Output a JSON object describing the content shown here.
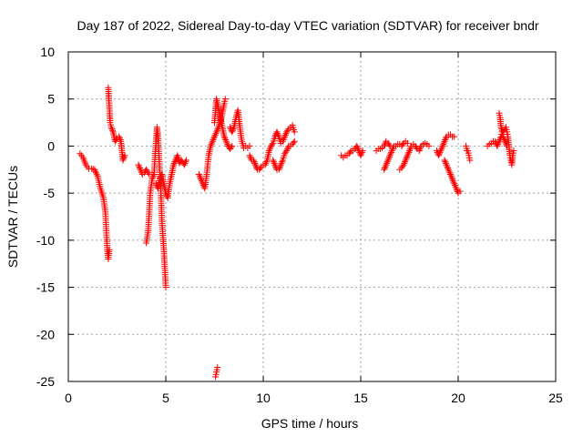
{
  "chart_data": {
    "type": "scatter",
    "title": "Day 187 of 2022, Sidereal Day-to-day VTEC variation (SDTVAR) for receiver bndr",
    "xlabel": "GPS time / hours",
    "ylabel": "SDTVAR / TECUs",
    "xlim": [
      0,
      25
    ],
    "ylim": [
      -25,
      10
    ],
    "xticks": [
      0,
      5,
      10,
      15,
      20,
      25
    ],
    "yticks": [
      -25,
      -20,
      -15,
      -10,
      -5,
      0,
      5,
      10
    ],
    "grid": true,
    "marker": "plus",
    "color": "#ff0000",
    "series": [
      {
        "name": "seg1",
        "points": [
          [
            0.6,
            -0.8
          ],
          [
            0.75,
            -1.2
          ],
          [
            0.9,
            -2.0
          ],
          [
            1.05,
            -2.4
          ],
          [
            1.2,
            -2.4
          ],
          [
            1.35,
            -2.5
          ],
          [
            1.5,
            -3.2
          ],
          [
            1.65,
            -4.5
          ],
          [
            1.8,
            -5.5
          ],
          [
            1.9,
            -7.0
          ],
          [
            1.95,
            -9.0
          ],
          [
            2.0,
            -11.0
          ],
          [
            2.05,
            -12.0
          ],
          [
            2.1,
            -11.0
          ]
        ]
      },
      {
        "name": "seg2",
        "points": [
          [
            2.05,
            6.2
          ],
          [
            2.08,
            5.0
          ],
          [
            2.12,
            3.5
          ],
          [
            2.15,
            2.5
          ],
          [
            2.2,
            2.0
          ],
          [
            2.3,
            1.5
          ],
          [
            2.4,
            0.5
          ],
          [
            2.5,
            0.8
          ],
          [
            2.6,
            1.0
          ],
          [
            2.7,
            0.5
          ],
          [
            2.75,
            -0.5
          ],
          [
            2.8,
            -1.5
          ],
          [
            2.9,
            -1.0
          ]
        ]
      },
      {
        "name": "seg3",
        "points": [
          [
            3.6,
            -2.0
          ],
          [
            3.7,
            -2.5
          ],
          [
            3.8,
            -3.0
          ],
          [
            3.9,
            -2.8
          ],
          [
            4.0,
            -2.5
          ],
          [
            4.15,
            -3.0
          ],
          [
            4.3,
            -3.0
          ]
        ]
      },
      {
        "name": "seg4",
        "points": [
          [
            4.0,
            -10.3
          ],
          [
            4.1,
            -9.0
          ],
          [
            4.15,
            -7.0
          ],
          [
            4.2,
            -5.0
          ],
          [
            4.3,
            -3.5
          ],
          [
            4.4,
            -3.0
          ],
          [
            4.45,
            -1.0
          ],
          [
            4.5,
            0.5
          ],
          [
            4.55,
            2.0
          ],
          [
            4.6,
            1.0
          ],
          [
            4.65,
            -1.0
          ],
          [
            4.7,
            -3.0
          ],
          [
            4.75,
            -5.0
          ],
          [
            4.8,
            -8.0
          ],
          [
            4.9,
            -11.0
          ],
          [
            4.95,
            -13.0
          ],
          [
            5.0,
            -15.0
          ]
        ]
      },
      {
        "name": "seg5",
        "points": [
          [
            4.5,
            -4.0
          ],
          [
            4.6,
            -4.5
          ],
          [
            4.7,
            -3.5
          ],
          [
            4.8,
            -3.0
          ],
          [
            4.9,
            -4.0
          ],
          [
            5.0,
            -5.0
          ],
          [
            5.1,
            -5.5
          ],
          [
            5.2,
            -4.0
          ],
          [
            5.3,
            -3.0
          ],
          [
            5.4,
            -2.0
          ],
          [
            5.5,
            -1.5
          ],
          [
            5.6,
            -1.0
          ],
          [
            5.7,
            -1.8
          ],
          [
            5.8,
            -1.5
          ],
          [
            5.95,
            -2.0
          ],
          [
            6.05,
            -1.5
          ]
        ]
      },
      {
        "name": "seg6",
        "points": [
          [
            6.7,
            -3.0
          ],
          [
            6.8,
            -3.5
          ],
          [
            6.9,
            -4.0
          ],
          [
            7.0,
            -4.5
          ],
          [
            7.1,
            -3.0
          ],
          [
            7.2,
            -1.0
          ],
          [
            7.3,
            0.0
          ],
          [
            7.4,
            0.5
          ],
          [
            7.5,
            1.0
          ],
          [
            7.6,
            1.5
          ],
          [
            7.7,
            2.0
          ],
          [
            7.8,
            2.5
          ],
          [
            7.9,
            3.5
          ],
          [
            8.0,
            4.5
          ],
          [
            8.05,
            5.0
          ]
        ]
      },
      {
        "name": "seg7",
        "points": [
          [
            7.5,
            2.5
          ],
          [
            7.6,
            5.0
          ],
          [
            7.7,
            4.0
          ],
          [
            7.8,
            3.0
          ],
          [
            7.9,
            2.0
          ],
          [
            8.0,
            1.0
          ],
          [
            8.1,
            0.5
          ],
          [
            8.2,
            0.0
          ],
          [
            8.3,
            -0.3
          ],
          [
            8.4,
            0.0
          ]
        ]
      },
      {
        "name": "seg8",
        "points": [
          [
            8.3,
            2.0
          ],
          [
            8.4,
            1.5
          ],
          [
            8.5,
            2.0
          ],
          [
            8.6,
            3.0
          ],
          [
            8.7,
            3.8
          ],
          [
            8.8,
            2.0
          ],
          [
            8.9,
            0.5
          ],
          [
            9.0,
            -0.2
          ],
          [
            9.1,
            0.0
          ],
          [
            9.2,
            -0.2
          ],
          [
            9.3,
            0.0
          ]
        ]
      },
      {
        "name": "seg9",
        "points": [
          [
            9.3,
            -1.0
          ],
          [
            9.4,
            -1.5
          ],
          [
            9.5,
            -1.5
          ],
          [
            9.6,
            -2.0
          ],
          [
            9.7,
            -2.5
          ],
          [
            9.8,
            -2.5
          ],
          [
            9.9,
            -2.2
          ],
          [
            10.0,
            -2.0
          ],
          [
            10.1,
            -2.0
          ],
          [
            10.2,
            -1.5
          ],
          [
            10.3,
            -0.5
          ],
          [
            10.4,
            0.0
          ],
          [
            10.5,
            0.3
          ],
          [
            10.6,
            1.0
          ],
          [
            10.7,
            1.5
          ],
          [
            10.8,
            1.0
          ],
          [
            10.9,
            0.3
          ]
        ]
      },
      {
        "name": "seg10",
        "points": [
          [
            10.5,
            -1.5
          ],
          [
            10.6,
            -2.0
          ],
          [
            10.7,
            -2.5
          ],
          [
            10.8,
            -2.5
          ],
          [
            10.9,
            -2.0
          ],
          [
            11.0,
            -1.5
          ],
          [
            11.1,
            -0.8
          ],
          [
            11.2,
            -0.5
          ],
          [
            11.3,
            0.0
          ],
          [
            11.4,
            0.0
          ],
          [
            11.5,
            0.2
          ],
          [
            11.6,
            0.5
          ]
        ]
      },
      {
        "name": "seg11",
        "points": [
          [
            11.0,
            0.5
          ],
          [
            11.1,
            1.0
          ],
          [
            11.2,
            1.5
          ],
          [
            11.3,
            1.8
          ],
          [
            11.4,
            2.0
          ],
          [
            11.5,
            2.2
          ],
          [
            11.6,
            1.5
          ]
        ]
      },
      {
        "name": "seg12",
        "points": [
          [
            7.55,
            -24.5
          ],
          [
            7.6,
            -24.0
          ],
          [
            7.65,
            -23.5
          ]
        ]
      },
      {
        "name": "seg13",
        "points": [
          [
            14.0,
            -1.0
          ],
          [
            14.1,
            -1.2
          ],
          [
            14.2,
            -1.0
          ],
          [
            14.3,
            -1.0
          ],
          [
            14.4,
            -0.8
          ],
          [
            14.5,
            -0.5
          ],
          [
            14.6,
            -0.5
          ],
          [
            14.7,
            -0.3
          ],
          [
            14.8,
            0.0
          ],
          [
            14.9,
            -0.5
          ],
          [
            15.0,
            -1.0
          ],
          [
            15.1,
            -0.5
          ]
        ]
      },
      {
        "name": "seg14",
        "points": [
          [
            15.8,
            -0.5
          ],
          [
            15.9,
            -0.3
          ],
          [
            16.0,
            -0.3
          ],
          [
            16.1,
            -0.2
          ],
          [
            16.2,
            0.0
          ],
          [
            16.3,
            0.5
          ],
          [
            16.4,
            0.3
          ],
          [
            16.5,
            0.0
          ]
        ]
      },
      {
        "name": "seg15",
        "points": [
          [
            16.2,
            -2.5
          ],
          [
            16.3,
            -2.0
          ],
          [
            16.4,
            -1.5
          ],
          [
            16.5,
            -1.0
          ],
          [
            16.6,
            -0.5
          ],
          [
            16.7,
            0.0
          ],
          [
            16.8,
            0.0
          ],
          [
            16.9,
            0.2
          ],
          [
            17.0,
            0.2
          ],
          [
            17.1,
            0.0
          ],
          [
            17.2,
            0.3
          ],
          [
            17.3,
            0.5
          ],
          [
            17.4,
            0.3
          ]
        ]
      },
      {
        "name": "seg16",
        "points": [
          [
            17.0,
            -2.5
          ],
          [
            17.1,
            -2.3
          ],
          [
            17.2,
            -2.0
          ],
          [
            17.3,
            -1.5
          ],
          [
            17.4,
            -1.0
          ],
          [
            17.5,
            -0.5
          ],
          [
            17.6,
            0.0
          ],
          [
            17.7,
            0.2
          ],
          [
            17.8,
            0.0
          ],
          [
            17.9,
            -0.3
          ],
          [
            18.0,
            -0.5
          ],
          [
            18.1,
            0.0
          ],
          [
            18.2,
            0.2
          ],
          [
            18.3,
            0.3
          ],
          [
            18.4,
            0.2
          ],
          [
            18.5,
            0.0
          ]
        ]
      },
      {
        "name": "seg17",
        "points": [
          [
            18.9,
            -0.5
          ],
          [
            19.0,
            -1.0
          ],
          [
            19.1,
            -0.5
          ],
          [
            19.2,
            0.0
          ],
          [
            19.3,
            0.5
          ],
          [
            19.4,
            1.0
          ],
          [
            19.5,
            1.2
          ],
          [
            19.6,
            1.2
          ],
          [
            19.7,
            1.0
          ],
          [
            19.8,
            1.0
          ]
        ]
      },
      {
        "name": "seg18",
        "points": [
          [
            19.3,
            -1.5
          ],
          [
            19.4,
            -2.0
          ],
          [
            19.5,
            -2.5
          ],
          [
            19.6,
            -3.0
          ],
          [
            19.7,
            -3.5
          ],
          [
            19.8,
            -4.0
          ],
          [
            19.9,
            -4.5
          ],
          [
            20.0,
            -5.0
          ],
          [
            20.1,
            -4.8
          ]
        ]
      },
      {
        "name": "seg19",
        "points": [
          [
            20.4,
            0.0
          ],
          [
            20.45,
            -0.5
          ],
          [
            20.5,
            -0.5
          ],
          [
            20.55,
            -1.0
          ],
          [
            20.6,
            -1.5
          ]
        ]
      },
      {
        "name": "seg20",
        "points": [
          [
            21.5,
            0.0
          ],
          [
            21.6,
            0.2
          ],
          [
            21.7,
            0.3
          ],
          [
            21.8,
            0.5
          ],
          [
            21.9,
            0.5
          ],
          [
            22.0,
            0.0
          ],
          [
            22.1,
            0.5
          ],
          [
            22.2,
            1.0
          ],
          [
            22.25,
            1.5
          ],
          [
            22.3,
            1.0
          ],
          [
            22.4,
            0.5
          ],
          [
            22.5,
            0.0
          ]
        ]
      },
      {
        "name": "seg21",
        "points": [
          [
            22.1,
            3.5
          ],
          [
            22.15,
            3.0
          ],
          [
            22.2,
            2.0
          ],
          [
            22.3,
            1.5
          ],
          [
            22.4,
            1.8
          ],
          [
            22.45,
            2.0
          ],
          [
            22.5,
            1.5
          ],
          [
            22.55,
            1.0
          ],
          [
            22.6,
            0.0
          ],
          [
            22.65,
            -1.0
          ],
          [
            22.7,
            -1.5
          ],
          [
            22.75,
            -2.0
          ],
          [
            22.8,
            -1.0
          ],
          [
            22.85,
            -0.5
          ]
        ]
      }
    ]
  }
}
